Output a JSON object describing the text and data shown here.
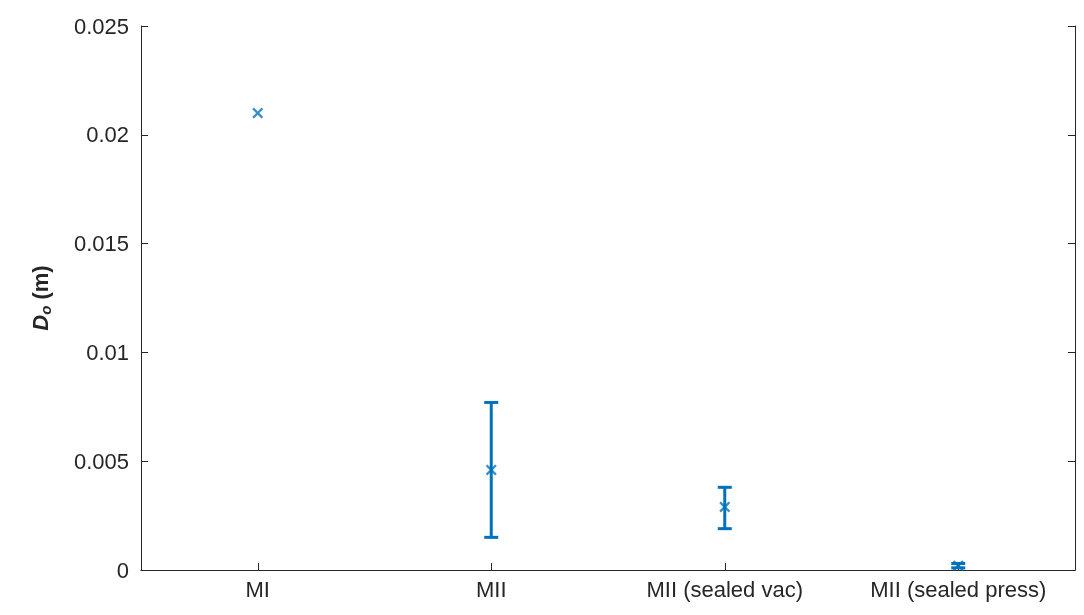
{
  "chart_data": {
    "type": "scatter",
    "categories": [
      "MI",
      "MII",
      "MII (sealed vac)",
      "MII (sealed press)"
    ],
    "values": [
      0.021,
      0.0046,
      0.0029,
      0.0002
    ],
    "errors": [
      null,
      [
        0.0015,
        0.0077
      ],
      [
        0.0019,
        0.0038
      ],
      [
        0.0001,
        0.0003
      ]
    ],
    "color": "#0072bd",
    "ylabel": "D$_{o}$ (m)",
    "ylim": [
      0,
      0.025
    ],
    "yticks": [
      0,
      0.005,
      0.01,
      0.015,
      0.02,
      0.025
    ],
    "marker": "cross",
    "grid": false
  }
}
